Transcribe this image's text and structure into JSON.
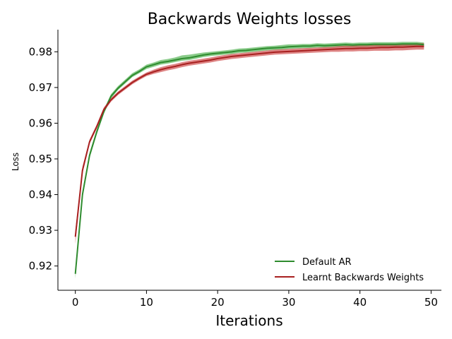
{
  "chart_data": {
    "type": "line",
    "title": "Backwards Weights losses",
    "xlabel": "Iterations",
    "ylabel": "Loss",
    "xlim": [
      -2.45,
      51.45
    ],
    "ylim": [
      0.9132,
      0.9862
    ],
    "xticks": [
      0,
      10,
      20,
      30,
      40,
      50
    ],
    "yticks": [
      0.92,
      0.93,
      0.94,
      0.95,
      0.96,
      0.97,
      0.98
    ],
    "xtick_labels": [
      "0",
      "10",
      "20",
      "30",
      "40",
      "50"
    ],
    "ytick_labels": [
      "0.92",
      "0.93",
      "0.94",
      "0.95",
      "0.96",
      "0.97",
      "0.98"
    ],
    "grid": false,
    "legend_position": "bottom-right",
    "x": [
      0,
      1,
      2,
      3,
      4,
      5,
      6,
      7,
      8,
      9,
      10,
      11,
      12,
      13,
      14,
      15,
      16,
      17,
      18,
      19,
      20,
      21,
      22,
      23,
      24,
      25,
      26,
      27,
      28,
      29,
      30,
      31,
      32,
      33,
      34,
      35,
      36,
      37,
      38,
      39,
      40,
      41,
      42,
      43,
      44,
      45,
      46,
      47,
      48,
      49
    ],
    "series": [
      {
        "name": "Default AR",
        "color": "#2e8b2e",
        "band_color": "#4caf4c",
        "values": [
          0.9178,
          0.94,
          0.951,
          0.9575,
          0.9632,
          0.9675,
          0.9698,
          0.9716,
          0.9734,
          0.9745,
          0.9758,
          0.9764,
          0.977,
          0.9773,
          0.9777,
          0.9781,
          0.9783,
          0.9787,
          0.9791,
          0.9794,
          0.9796,
          0.9798,
          0.98,
          0.9803,
          0.9804,
          0.9806,
          0.9808,
          0.981,
          0.9811,
          0.9812,
          0.9814,
          0.9815,
          0.9816,
          0.9816,
          0.9818,
          0.9817,
          0.9818,
          0.9819,
          0.982,
          0.9819,
          0.982,
          0.982,
          0.9821,
          0.9821,
          0.9821,
          0.9821,
          0.9822,
          0.9822,
          0.9822,
          0.982
        ],
        "lower": [
          0.9165,
          0.939,
          0.9502,
          0.9568,
          0.9626,
          0.9669,
          0.9693,
          0.9711,
          0.9729,
          0.974,
          0.9752,
          0.9758,
          0.9764,
          0.9767,
          0.9771,
          0.9775,
          0.9777,
          0.9781,
          0.9785,
          0.9788,
          0.979,
          0.9792,
          0.9794,
          0.9797,
          0.9798,
          0.98,
          0.9802,
          0.9804,
          0.9805,
          0.9806,
          0.9808,
          0.9809,
          0.981,
          0.981,
          0.9812,
          0.9811,
          0.9812,
          0.9813,
          0.9814,
          0.9813,
          0.9814,
          0.9814,
          0.9815,
          0.9815,
          0.9815,
          0.9815,
          0.9816,
          0.9816,
          0.9816,
          0.9814
        ],
        "upper": [
          0.919,
          0.941,
          0.9518,
          0.9582,
          0.9638,
          0.9681,
          0.9704,
          0.9722,
          0.974,
          0.9751,
          0.9764,
          0.977,
          0.9777,
          0.978,
          0.9784,
          0.979,
          0.9792,
          0.9795,
          0.9798,
          0.98,
          0.9802,
          0.9804,
          0.9806,
          0.9809,
          0.981,
          0.9812,
          0.9814,
          0.9816,
          0.9817,
          0.9819,
          0.9821,
          0.9821,
          0.9822,
          0.9822,
          0.9824,
          0.9823,
          0.9824,
          0.9825,
          0.9826,
          0.9825,
          0.9826,
          0.9826,
          0.9827,
          0.9827,
          0.9827,
          0.9827,
          0.9828,
          0.9828,
          0.9828,
          0.9826
        ]
      },
      {
        "name": "Learnt Backwards Weights",
        "color": "#a82020",
        "band_color": "#cc4444",
        "values": [
          0.9282,
          0.9468,
          0.9548,
          0.959,
          0.9638,
          0.9665,
          0.9684,
          0.9699,
          0.9714,
          0.9726,
          0.9737,
          0.9744,
          0.975,
          0.9755,
          0.9759,
          0.9764,
          0.9768,
          0.9771,
          0.9774,
          0.9777,
          0.9781,
          0.9784,
          0.9787,
          0.9789,
          0.9791,
          0.9793,
          0.9795,
          0.9797,
          0.9799,
          0.98,
          0.9801,
          0.9802,
          0.9803,
          0.9804,
          0.9805,
          0.9806,
          0.9807,
          0.9808,
          0.9809,
          0.9809,
          0.981,
          0.981,
          0.9811,
          0.9812,
          0.9812,
          0.9813,
          0.9813,
          0.9814,
          0.9815,
          0.9815
        ],
        "lower": [
          0.9262,
          0.9458,
          0.9542,
          0.9584,
          0.9632,
          0.966,
          0.9679,
          0.9694,
          0.9709,
          0.9721,
          0.9732,
          0.9738,
          0.9743,
          0.9748,
          0.9752,
          0.9757,
          0.9761,
          0.9764,
          0.9767,
          0.977,
          0.9774,
          0.9777,
          0.978,
          0.9782,
          0.9784,
          0.9786,
          0.9788,
          0.979,
          0.9792,
          0.9793,
          0.9794,
          0.9795,
          0.9796,
          0.9797,
          0.9798,
          0.9799,
          0.98,
          0.98,
          0.9801,
          0.9801,
          0.9802,
          0.9802,
          0.9803,
          0.9803,
          0.9803,
          0.9804,
          0.9804,
          0.9805,
          0.9806,
          0.9806
        ],
        "upper": [
          0.93,
          0.9478,
          0.9554,
          0.9596,
          0.9644,
          0.967,
          0.9689,
          0.9704,
          0.9719,
          0.9731,
          0.9742,
          0.975,
          0.9757,
          0.9762,
          0.9766,
          0.9771,
          0.9775,
          0.9778,
          0.9781,
          0.9784,
          0.9788,
          0.9791,
          0.9794,
          0.9796,
          0.9798,
          0.98,
          0.9802,
          0.9804,
          0.9806,
          0.9807,
          0.9808,
          0.9809,
          0.981,
          0.9811,
          0.9812,
          0.9813,
          0.9814,
          0.9816,
          0.9817,
          0.9817,
          0.9818,
          0.9818,
          0.9819,
          0.9821,
          0.9821,
          0.9822,
          0.9822,
          0.9823,
          0.9824,
          0.9824
        ]
      }
    ]
  }
}
